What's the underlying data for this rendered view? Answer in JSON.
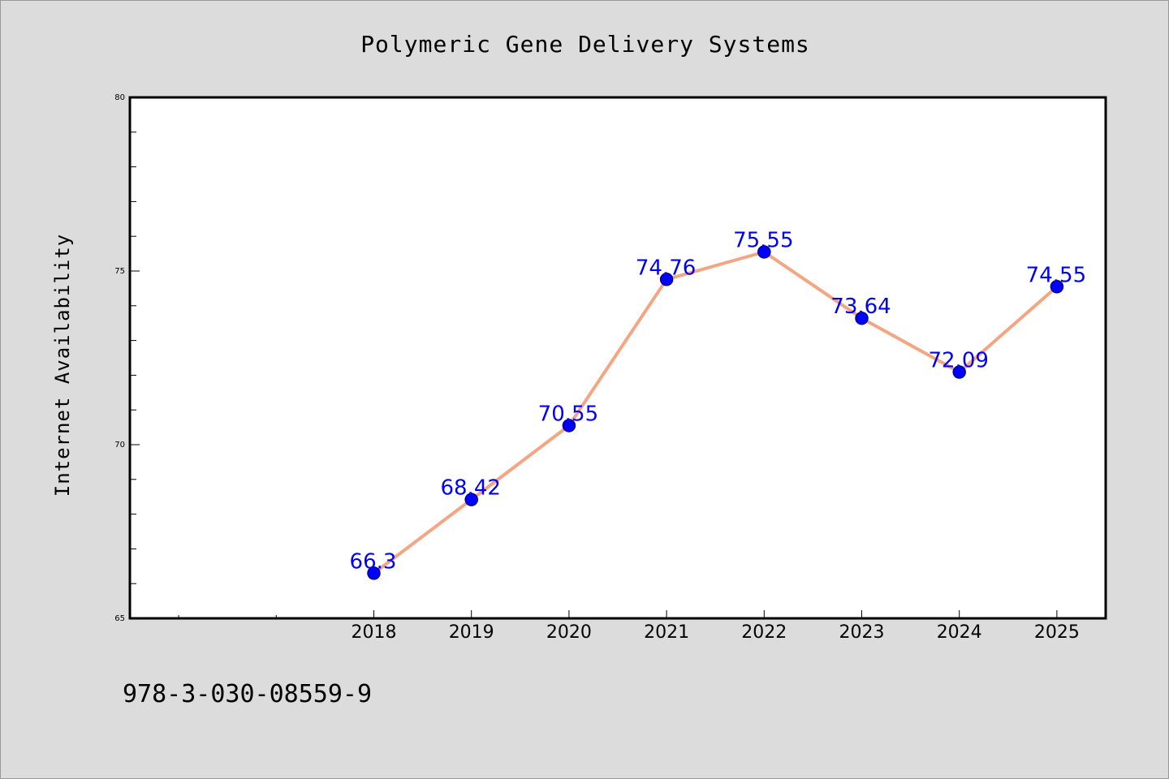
{
  "chart_data": {
    "type": "line",
    "title": "Polymeric Gene Delivery Systems",
    "xlabel": "",
    "ylabel": "Internet Availability",
    "x": [
      "2018",
      "2019",
      "2020",
      "2021",
      "2022",
      "2023",
      "2024",
      "2025"
    ],
    "y": [
      66.3,
      68.42,
      70.55,
      74.76,
      75.55,
      73.64,
      72.09,
      74.55
    ],
    "data_labels": [
      "66.3",
      "68.42",
      "70.55",
      "74.76",
      "75.55",
      "73.64",
      "72.09",
      "74.55"
    ],
    "ylim": [
      65,
      80
    ],
    "xlim": [
      2015.5,
      2025.5
    ],
    "y_major_ticks": [
      65,
      70,
      75,
      80
    ],
    "y_major_tick_labels": [
      "65",
      "70",
      "75",
      "80"
    ],
    "y_minor_step": 1,
    "x_minor_ticks": [
      2016,
      2017
    ],
    "grid": false,
    "legend": "none",
    "footer": "978-3-030-08559-9",
    "colors": {
      "line": "#f4a582",
      "marker": "#0000ff",
      "marker_edge": "#00008b",
      "label": "#0000ff",
      "plot_background": "#ffffff",
      "figure_background": "#dcdcdc",
      "axis": "#000000"
    }
  }
}
